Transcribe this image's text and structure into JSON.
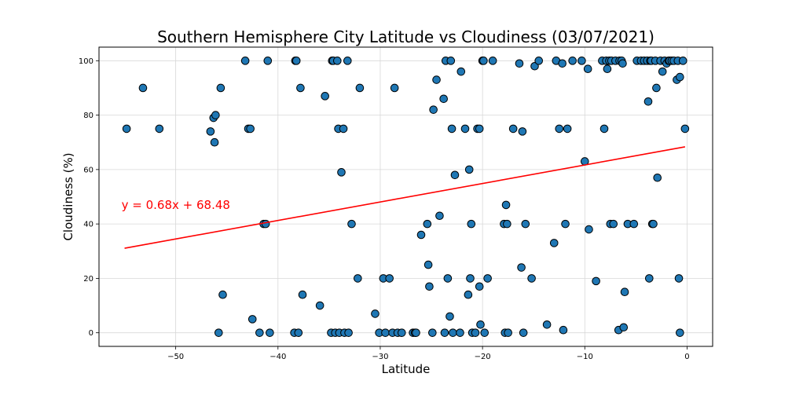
{
  "chart_data": {
    "type": "scatter",
    "title": "Southern Hemisphere City Latitude vs Cloudiness (03/07/2021)",
    "xlabel": "Latitude",
    "ylabel": "Cloudiness (%)",
    "xlim": [
      -57.5,
      2.5
    ],
    "ylim": [
      -5,
      105
    ],
    "xticks": [
      -50,
      -40,
      -30,
      -20,
      -10,
      0
    ],
    "xtick_labels": [
      "−50",
      "−40",
      "−30",
      "−20",
      "−10",
      "0"
    ],
    "yticks": [
      0,
      20,
      40,
      60,
      80,
      100
    ],
    "ytick_labels": [
      "0",
      "20",
      "40",
      "60",
      "80",
      "100"
    ],
    "grid": true,
    "point_color": "#1f77b4",
    "point_edge_color": "#000000",
    "regression": {
      "slope": 0.68,
      "intercept": 68.48,
      "x_range": [
        -55,
        -0.2
      ],
      "color": "#ff0000",
      "equation_label": "y = 0.68x + 68.48",
      "label_position_data": [
        -55.3,
        45.5
      ]
    },
    "points": [
      [
        -54.8,
        75
      ],
      [
        -53.2,
        90
      ],
      [
        -51.6,
        75
      ],
      [
        -46.6,
        74
      ],
      [
        -46.3,
        79
      ],
      [
        -46.2,
        70
      ],
      [
        -46.1,
        80
      ],
      [
        -45.8,
        0
      ],
      [
        -45.6,
        90
      ],
      [
        -45.4,
        14
      ],
      [
        -43.2,
        100
      ],
      [
        -42.9,
        75
      ],
      [
        -42.7,
        75
      ],
      [
        -42.5,
        5
      ],
      [
        -41.8,
        0
      ],
      [
        -41.4,
        40
      ],
      [
        -41.2,
        40
      ],
      [
        -41.0,
        100
      ],
      [
        -40.8,
        0
      ],
      [
        -38.4,
        0
      ],
      [
        -38.3,
        100
      ],
      [
        -38.2,
        100
      ],
      [
        -38.0,
        0
      ],
      [
        -37.8,
        90
      ],
      [
        -37.6,
        14
      ],
      [
        -35.9,
        10
      ],
      [
        -35.4,
        87
      ],
      [
        -34.8,
        0
      ],
      [
        -34.7,
        100
      ],
      [
        -34.6,
        100
      ],
      [
        -34.4,
        0
      ],
      [
        -34.2,
        100
      ],
      [
        -34.1,
        75
      ],
      [
        -34.0,
        0
      ],
      [
        -33.8,
        59
      ],
      [
        -33.6,
        75
      ],
      [
        -33.5,
        0
      ],
      [
        -33.2,
        100
      ],
      [
        -33.1,
        0
      ],
      [
        -32.8,
        40
      ],
      [
        -32.2,
        20
      ],
      [
        -32.0,
        90
      ],
      [
        -30.5,
        7
      ],
      [
        -30.1,
        0
      ],
      [
        -29.7,
        20
      ],
      [
        -29.5,
        0
      ],
      [
        -29.1,
        20
      ],
      [
        -28.8,
        0
      ],
      [
        -28.6,
        90
      ],
      [
        -28.3,
        0
      ],
      [
        -27.9,
        0
      ],
      [
        -26.8,
        0
      ],
      [
        -26.6,
        0
      ],
      [
        -26.5,
        0
      ],
      [
        -26.0,
        36
      ],
      [
        -25.4,
        40
      ],
      [
        -25.3,
        25
      ],
      [
        -25.2,
        17
      ],
      [
        -24.9,
        0
      ],
      [
        -24.8,
        82
      ],
      [
        -24.5,
        93
      ],
      [
        -24.2,
        43
      ],
      [
        -23.8,
        86
      ],
      [
        -23.7,
        0
      ],
      [
        -23.6,
        100
      ],
      [
        -23.4,
        20
      ],
      [
        -23.2,
        6
      ],
      [
        -23.1,
        100
      ],
      [
        -23.0,
        75
      ],
      [
        -22.9,
        0
      ],
      [
        -22.7,
        58
      ],
      [
        -22.2,
        0
      ],
      [
        -22.1,
        96
      ],
      [
        -21.7,
        75
      ],
      [
        -21.4,
        14
      ],
      [
        -21.3,
        60
      ],
      [
        -21.2,
        20
      ],
      [
        -21.1,
        40
      ],
      [
        -21.0,
        0
      ],
      [
        -20.7,
        0
      ],
      [
        -20.5,
        75
      ],
      [
        -20.3,
        75
      ],
      [
        -20.3,
        17
      ],
      [
        -20.2,
        3
      ],
      [
        -20.0,
        100
      ],
      [
        -19.9,
        100
      ],
      [
        -19.8,
        0
      ],
      [
        -19.5,
        20
      ],
      [
        -19.0,
        100
      ],
      [
        -17.9,
        40
      ],
      [
        -17.8,
        0
      ],
      [
        -17.7,
        47
      ],
      [
        -17.6,
        40
      ],
      [
        -17.5,
        0
      ],
      [
        -17.0,
        75
      ],
      [
        -16.4,
        99
      ],
      [
        -16.2,
        24
      ],
      [
        -16.1,
        74
      ],
      [
        -16.0,
        0
      ],
      [
        -15.8,
        40
      ],
      [
        -15.2,
        20
      ],
      [
        -14.9,
        98
      ],
      [
        -14.5,
        100
      ],
      [
        -13.7,
        3
      ],
      [
        -13.0,
        33
      ],
      [
        -12.8,
        100
      ],
      [
        -12.5,
        75
      ],
      [
        -12.2,
        99
      ],
      [
        -12.1,
        1
      ],
      [
        -11.9,
        40
      ],
      [
        -11.7,
        75
      ],
      [
        -11.2,
        100
      ],
      [
        -10.3,
        100
      ],
      [
        -10.0,
        63
      ],
      [
        -9.7,
        97
      ],
      [
        -9.6,
        38
      ],
      [
        -8.9,
        19
      ],
      [
        -8.3,
        100
      ],
      [
        -8.1,
        75
      ],
      [
        -7.9,
        100
      ],
      [
        -7.8,
        97
      ],
      [
        -7.6,
        100
      ],
      [
        -7.5,
        40
      ],
      [
        -7.4,
        100
      ],
      [
        -7.2,
        40
      ],
      [
        -7.0,
        100
      ],
      [
        -6.7,
        1
      ],
      [
        -6.6,
        100
      ],
      [
        -6.4,
        100
      ],
      [
        -6.3,
        99
      ],
      [
        -6.2,
        2
      ],
      [
        -6.1,
        15
      ],
      [
        -5.8,
        40
      ],
      [
        -5.2,
        40
      ],
      [
        -4.9,
        100
      ],
      [
        -4.5,
        100
      ],
      [
        -4.2,
        100
      ],
      [
        -3.9,
        100
      ],
      [
        -3.8,
        85
      ],
      [
        -3.7,
        20
      ],
      [
        -3.6,
        100
      ],
      [
        -3.5,
        100
      ],
      [
        -3.4,
        40
      ],
      [
        -3.3,
        40
      ],
      [
        -3.1,
        100
      ],
      [
        -3.0,
        90
      ],
      [
        -2.9,
        57
      ],
      [
        -2.6,
        100
      ],
      [
        -2.4,
        96
      ],
      [
        -2.2,
        100
      ],
      [
        -2.0,
        99
      ],
      [
        -1.8,
        100
      ],
      [
        -1.7,
        100
      ],
      [
        -1.5,
        100
      ],
      [
        -1.3,
        100
      ],
      [
        -1.0,
        93
      ],
      [
        -0.9,
        100
      ],
      [
        -0.8,
        20
      ],
      [
        -0.7,
        94
      ],
      [
        -0.7,
        0
      ],
      [
        -0.4,
        100
      ],
      [
        -0.2,
        75
      ]
    ]
  }
}
